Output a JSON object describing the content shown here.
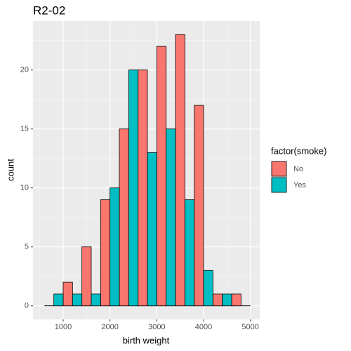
{
  "chart_data": {
    "type": "histogram",
    "title": "R2-02",
    "x_label": "birth weight",
    "y_label": "count",
    "bins": [
      600,
      1000,
      1400,
      1800,
      2200,
      2600,
      3000,
      3400,
      3800,
      4200,
      4600,
      5000
    ],
    "series": [
      {
        "name": "No",
        "color": "#F8766D",
        "values": [
          0,
          2,
          5,
          9,
          15,
          20,
          22,
          23,
          17,
          1,
          1
        ]
      },
      {
        "name": "Yes",
        "color": "#00BFC4",
        "values": [
          1,
          1,
          1,
          10,
          20,
          13,
          15,
          9,
          3,
          1,
          0
        ]
      }
    ],
    "legend_title": "factor(smoke)",
    "xlim": [
      355,
      5200
    ],
    "xticks": [
      1000,
      2000,
      3000,
      4000,
      5000
    ],
    "ylim": [
      -1.15,
      24.15
    ],
    "yticks": [
      0,
      5,
      10,
      15,
      20
    ],
    "grid": true,
    "legend": "right"
  }
}
